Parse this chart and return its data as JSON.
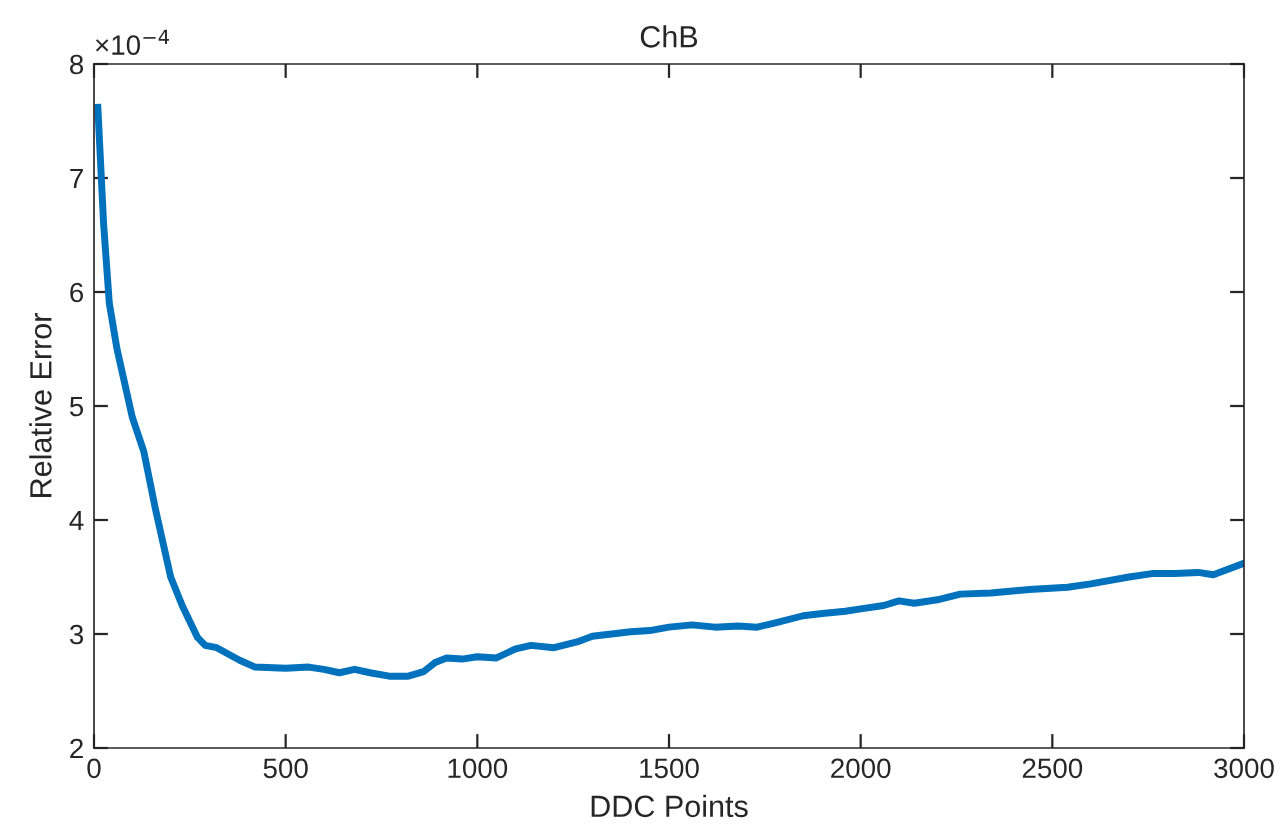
{
  "chart_data": {
    "type": "line",
    "title": "ChB",
    "xlabel": "DDC Points",
    "ylabel": "Relative Error",
    "annotations": [
      "×10$^{−4}$"
    ],
    "xlim": [
      0,
      3000
    ],
    "xticks": [
      0,
      500,
      1000,
      1500,
      2000,
      2500,
      3000
    ],
    "ylim": [
      2,
      8
    ],
    "yticks": [
      2,
      3,
      4,
      5,
      6,
      7,
      8
    ],
    "grid": false,
    "marker": "none",
    "line_style": "solid",
    "series": [
      {
        "color": "#0072bd",
        "x": [
          10,
          25,
          40,
          60,
          100,
          130,
          160,
          200,
          230,
          270,
          290,
          320,
          380,
          420,
          500,
          560,
          600,
          640,
          680,
          720,
          770,
          820,
          860,
          890,
          920,
          960,
          1000,
          1050,
          1100,
          1140,
          1200,
          1260,
          1300,
          1400,
          1450,
          1500,
          1560,
          1620,
          1680,
          1730,
          1780,
          1850,
          1900,
          1960,
          2000,
          2060,
          2100,
          2140,
          2200,
          2260,
          2340,
          2440,
          2540,
          2600,
          2700,
          2760,
          2820,
          2880,
          2920,
          2960,
          3000
        ],
        "values": [
          7.62,
          6.6,
          5.9,
          5.5,
          4.9,
          4.6,
          4.1,
          3.5,
          3.25,
          2.97,
          2.9,
          2.88,
          2.77,
          2.71,
          2.7,
          2.71,
          2.69,
          2.66,
          2.69,
          2.66,
          2.63,
          2.63,
          2.67,
          2.75,
          2.79,
          2.78,
          2.8,
          2.79,
          2.87,
          2.9,
          2.88,
          2.93,
          2.98,
          3.02,
          3.03,
          3.06,
          3.08,
          3.06,
          3.07,
          3.06,
          3.1,
          3.16,
          3.18,
          3.2,
          3.22,
          3.25,
          3.29,
          3.27,
          3.3,
          3.35,
          3.36,
          3.39,
          3.41,
          3.44,
          3.5,
          3.53,
          3.53,
          3.54,
          3.52,
          3.57,
          3.62
        ]
      }
    ]
  }
}
